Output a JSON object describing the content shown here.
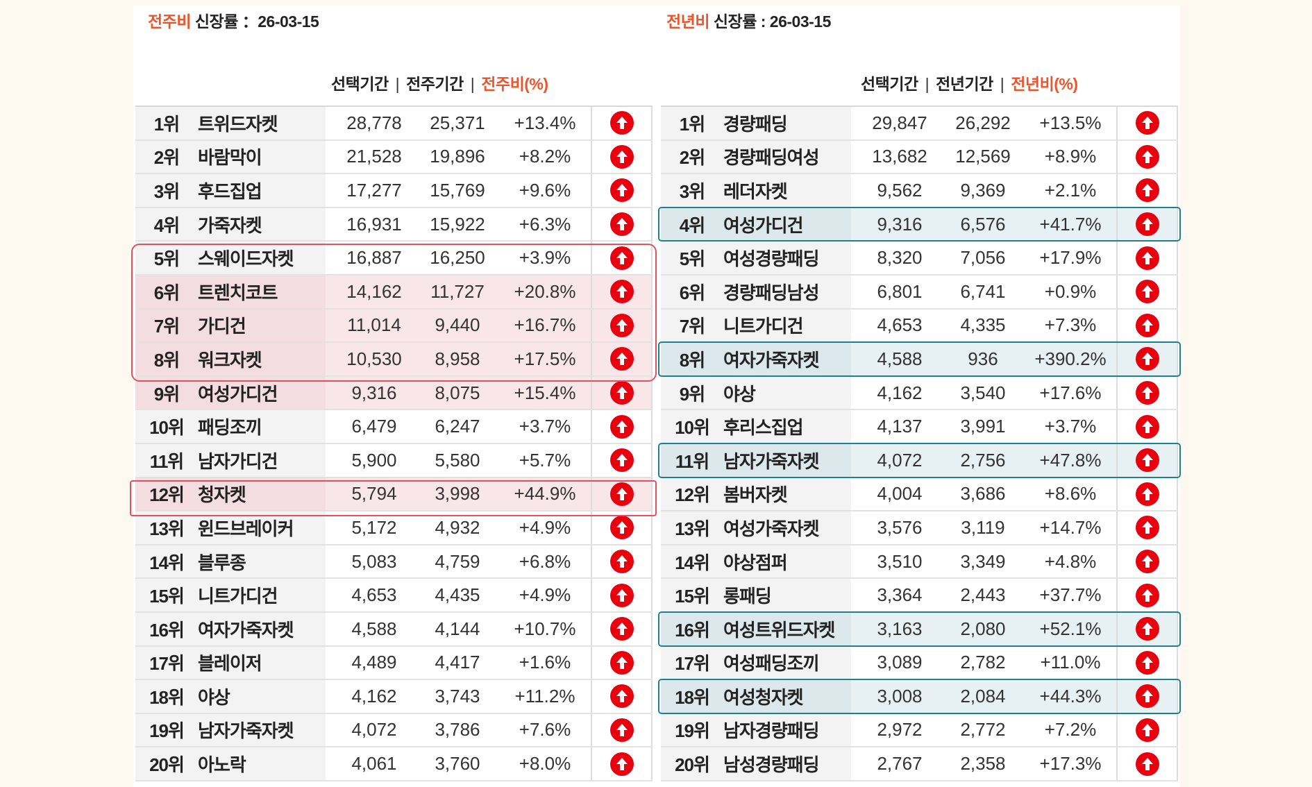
{
  "left": {
    "title_hl": "전주비",
    "title_rest": " 신장률 ：26-03-15",
    "col1": "선택기간",
    "col2": "전주기간",
    "col3": "전주비(%)",
    "sep": "|",
    "rows": [
      [
        "1위",
        "트위드자켓",
        "28,778",
        "25,371",
        "+13.4%"
      ],
      [
        "2위",
        "바람막이",
        "21,528",
        "19,896",
        "+8.2%"
      ],
      [
        "3위",
        "후드집업",
        "17,277",
        "15,769",
        "+9.6%"
      ],
      [
        "4위",
        "가죽자켓",
        "16,931",
        "15,922",
        "+6.3%"
      ],
      [
        "5위",
        "스웨이드자켓",
        "16,887",
        "16,250",
        "+3.9%"
      ],
      [
        "6위",
        "트렌치코트",
        "14,162",
        "11,727",
        "+20.8%"
      ],
      [
        "7위",
        "가디건",
        "11,014",
        "9,440",
        "+16.7%"
      ],
      [
        "8위",
        "워크자켓",
        "10,530",
        "8,958",
        "+17.5%"
      ],
      [
        "9위",
        "여성가디건",
        "9,316",
        "8,075",
        "+15.4%"
      ],
      [
        "10위",
        "패딩조끼",
        "6,479",
        "6,247",
        "+3.7%"
      ],
      [
        "11위",
        "남자가디건",
        "5,900",
        "5,580",
        "+5.7%"
      ],
      [
        "12위",
        "청자켓",
        "5,794",
        "3,998",
        "+44.9%"
      ],
      [
        "13위",
        "윈드브레이커",
        "5,172",
        "4,932",
        "+4.9%"
      ],
      [
        "14위",
        "블루종",
        "5,083",
        "4,759",
        "+6.8%"
      ],
      [
        "15위",
        "니트가디건",
        "4,653",
        "4,435",
        "+4.9%"
      ],
      [
        "16위",
        "여자가죽자켓",
        "4,588",
        "4,144",
        "+10.7%"
      ],
      [
        "17위",
        "블레이저",
        "4,489",
        "4,417",
        "+1.6%"
      ],
      [
        "18위",
        "야상",
        "4,162",
        "3,743",
        "+11.2%"
      ],
      [
        "19위",
        "남자가죽자켓",
        "4,072",
        "3,786",
        "+7.6%"
      ],
      [
        "20위",
        "아노락",
        "4,061",
        "3,760",
        "+8.0%"
      ]
    ],
    "highlighted_ranks": [
      6,
      7,
      8,
      9,
      12
    ]
  },
  "right": {
    "title_hl": "전년비",
    "title_rest": " 신장률 : 26-03-15",
    "col1": "선택기간",
    "col2": "전년기간",
    "col3": "전년비(%)",
    "sep": "|",
    "rows": [
      [
        "1위",
        "경량패딩",
        "29,847",
        "26,292",
        "+13.5%"
      ],
      [
        "2위",
        "경량패딩여성",
        "13,682",
        "12,569",
        "+8.9%"
      ],
      [
        "3위",
        "레더자켓",
        "9,562",
        "9,369",
        "+2.1%"
      ],
      [
        "4위",
        "여성가디건",
        "9,316",
        "6,576",
        "+41.7%"
      ],
      [
        "5위",
        "여성경량패딩",
        "8,320",
        "7,056",
        "+17.9%"
      ],
      [
        "6위",
        "경량패딩남성",
        "6,801",
        "6,741",
        "+0.9%"
      ],
      [
        "7위",
        "니트가디건",
        "4,653",
        "4,335",
        "+7.3%"
      ],
      [
        "8위",
        "여자가죽자켓",
        "4,588",
        "936",
        "+390.2%"
      ],
      [
        "9위",
        "야상",
        "4,162",
        "3,540",
        "+17.6%"
      ],
      [
        "10위",
        "후리스집업",
        "4,137",
        "3,991",
        "+3.7%"
      ],
      [
        "11위",
        "남자가죽자켓",
        "4,072",
        "2,756",
        "+47.8%"
      ],
      [
        "12위",
        "봄버자켓",
        "4,004",
        "3,686",
        "+8.6%"
      ],
      [
        "13위",
        "여성가죽자켓",
        "3,576",
        "3,119",
        "+14.7%"
      ],
      [
        "14위",
        "야상점퍼",
        "3,510",
        "3,349",
        "+4.8%"
      ],
      [
        "15위",
        "롱패딩",
        "3,364",
        "2,443",
        "+37.7%"
      ],
      [
        "16위",
        "여성트위드자켓",
        "3,163",
        "2,080",
        "+52.1%"
      ],
      [
        "17위",
        "여성패딩조끼",
        "3,089",
        "2,782",
        "+11.0%"
      ],
      [
        "18위",
        "여성청자켓",
        "3,008",
        "2,084",
        "+44.3%"
      ],
      [
        "19위",
        "남자경량패딩",
        "2,972",
        "2,772",
        "+7.2%"
      ],
      [
        "20위",
        "남성경량패딩",
        "2,767",
        "2,358",
        "+17.3%"
      ]
    ],
    "highlighted_ranks": [
      4,
      8,
      11,
      16,
      18
    ]
  },
  "icon": "arrow-up-circle-icon",
  "colors": {
    "accent": "#f0532a",
    "arrow": "#e8000f",
    "pink_border": "#e0505f",
    "teal_border": "#1e7f8f"
  }
}
